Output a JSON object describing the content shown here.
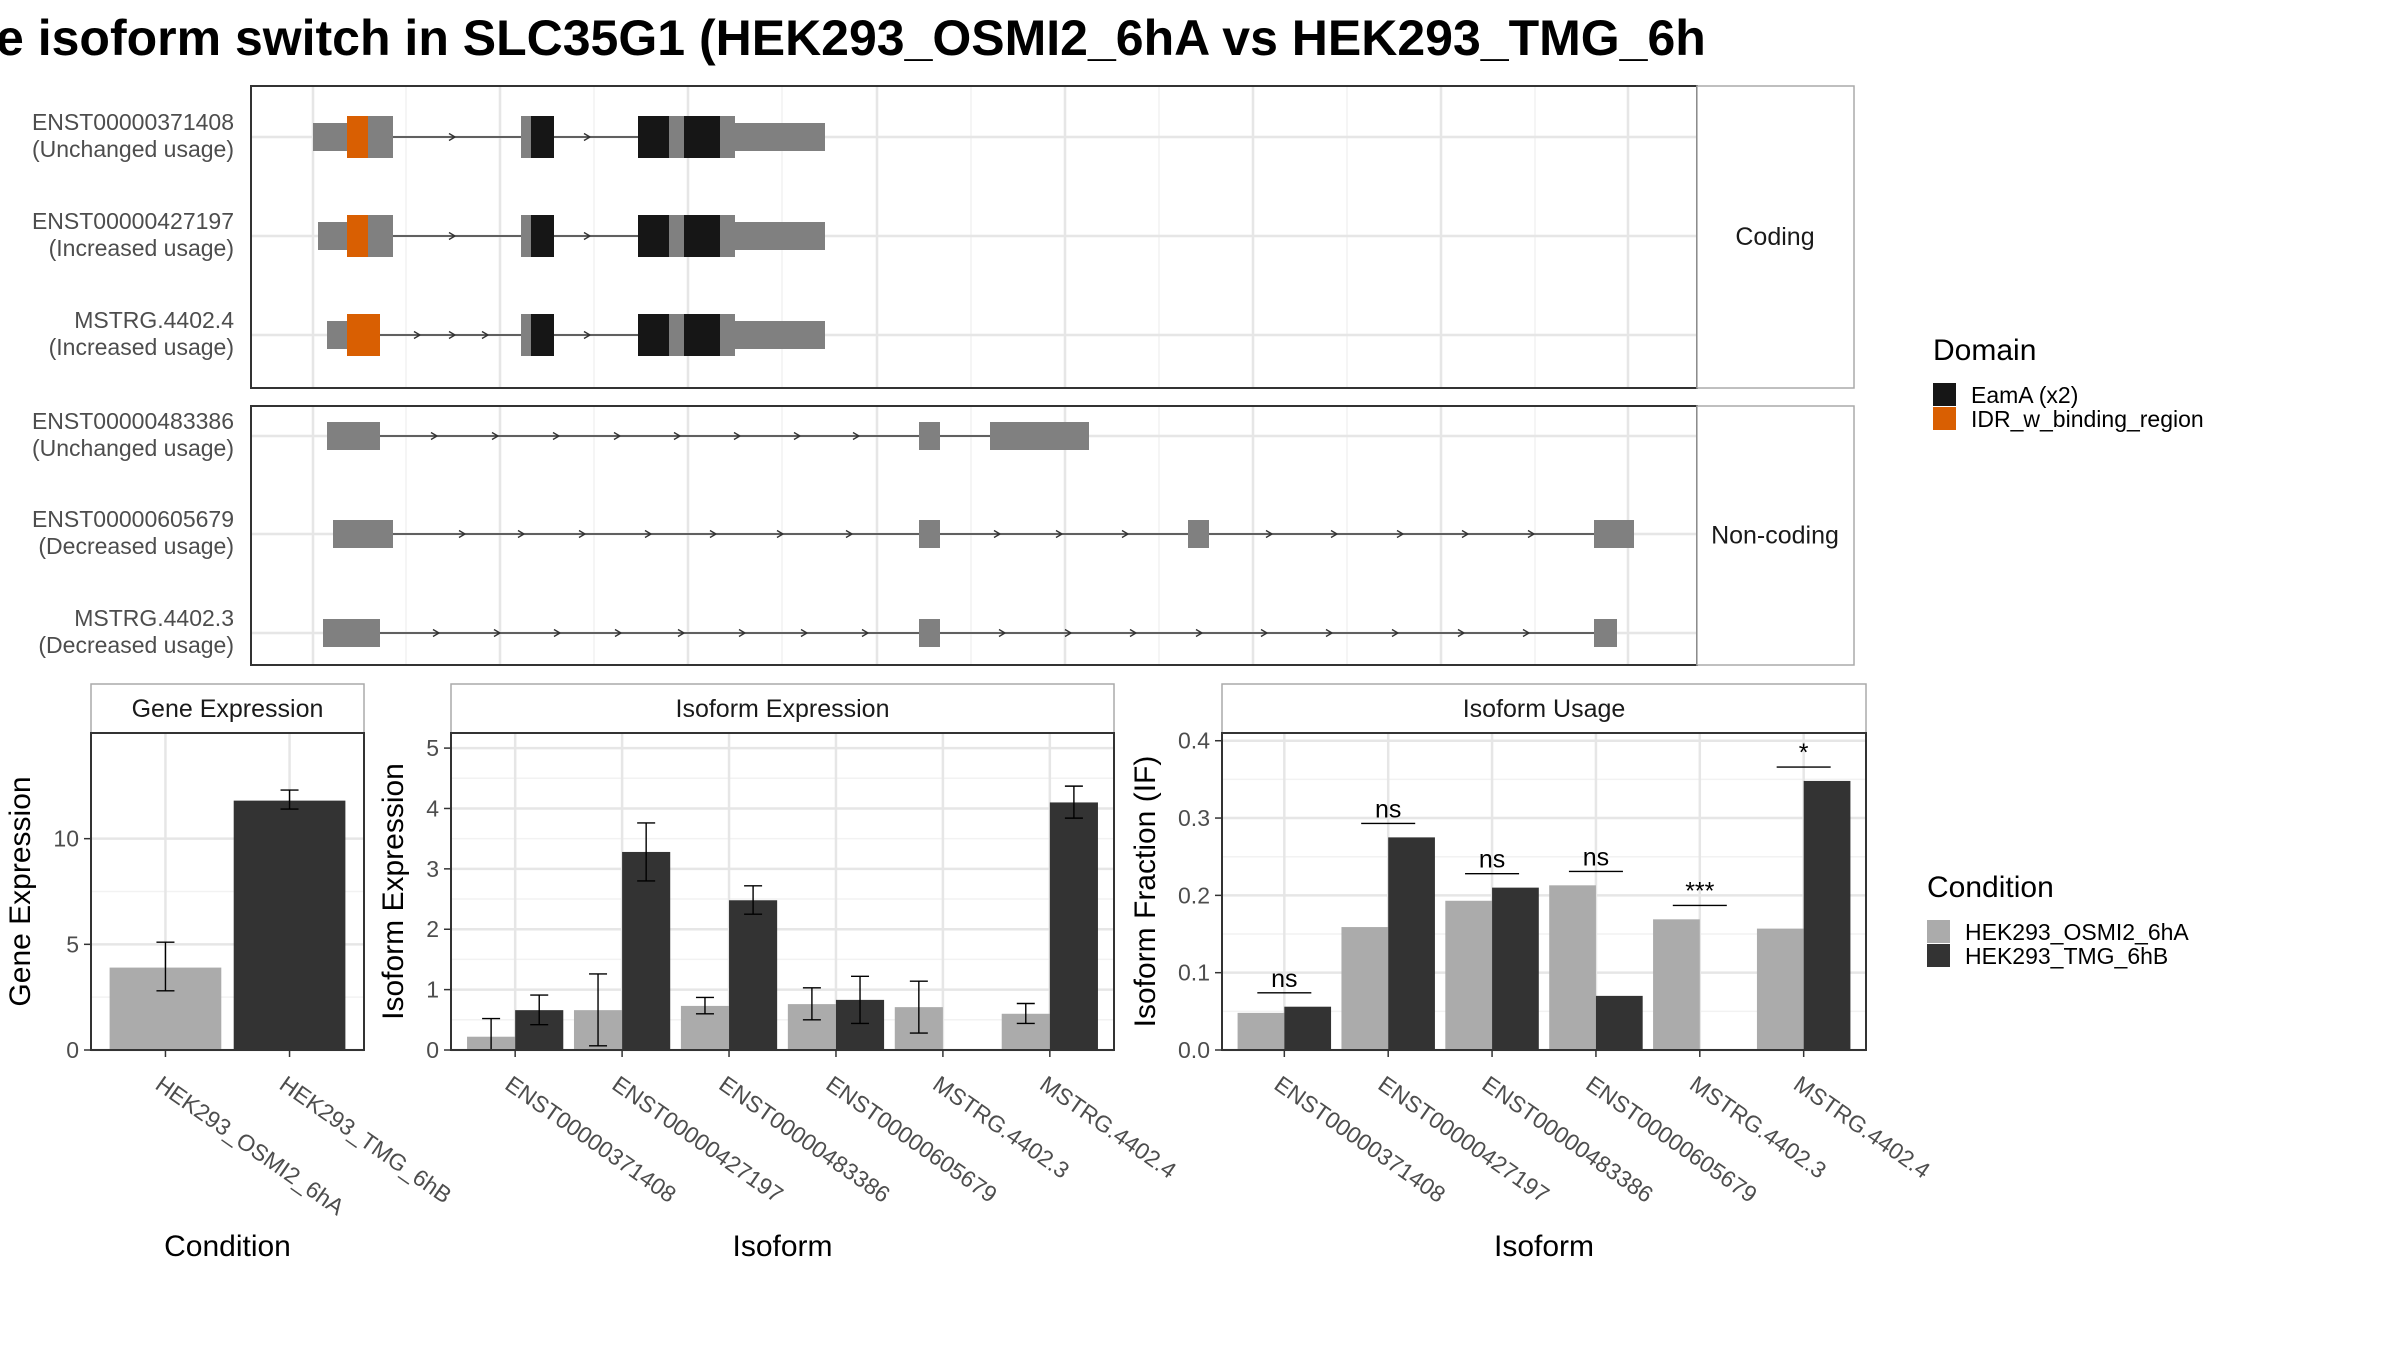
{
  "title": "e isoform switch in SLC35G1 (HEK293_OSMI2_6hA vs HEK293_TMG_6h",
  "colors": {
    "condition_a": "#ababab",
    "condition_b": "#333333",
    "exon": "#808080",
    "domain_eama": "#161616",
    "domain_idr": "#d95f02",
    "panel_border": "#333333",
    "strip_border": "#aaaaaa",
    "grid_major": "#e6e6e6",
    "grid_minor": "#f2f2f2"
  },
  "structure": {
    "coding_strip": "Coding",
    "noncoding_strip": "Non-coding",
    "tracks": [
      {
        "id": "ENST00000371408",
        "usage": "(Unchanged usage)",
        "group": "coding"
      },
      {
        "id": "ENST00000427197",
        "usage": "(Increased usage)",
        "group": "coding"
      },
      {
        "id": "MSTRG.4402.4",
        "usage": "(Increased usage)",
        "group": "coding"
      },
      {
        "id": "ENST00000483386",
        "usage": "(Unchanged usage)",
        "group": "noncoding"
      },
      {
        "id": "ENST00000605679",
        "usage": "(Decreased usage)",
        "group": "noncoding"
      },
      {
        "id": "MSTRG.4402.3",
        "usage": "(Decreased usage)",
        "group": "noncoding"
      }
    ]
  },
  "legend_domain": {
    "title": "Domain",
    "items": [
      {
        "label": "EamA (x2)",
        "color_key": "domain_eama"
      },
      {
        "label": "IDR_w_binding_region",
        "color_key": "domain_idr"
      }
    ]
  },
  "legend_condition": {
    "title": "Condition",
    "items": [
      {
        "label": "HEK293_OSMI2_6hA",
        "color_key": "condition_a"
      },
      {
        "label": "HEK293_TMG_6hB",
        "color_key": "condition_b"
      }
    ]
  },
  "chart_data": [
    {
      "type": "bar",
      "title": "Gene Expression",
      "xlabel": "Condition",
      "ylabel": "Gene Expression",
      "ylim": [
        0,
        15
      ],
      "yticks": [
        0,
        5,
        10
      ],
      "categories": [
        "HEK293_OSMI2_6hA",
        "HEK293_TMG_6hB"
      ],
      "values": [
        3.9,
        11.8
      ],
      "errors": [
        [
          2.8,
          5.1
        ],
        [
          11.4,
          12.3
        ]
      ]
    },
    {
      "type": "bar",
      "title": "Isoform Expression",
      "xlabel": "Isoform",
      "ylabel": "Isoform Expression",
      "ylim": [
        0,
        5.25
      ],
      "yticks": [
        0,
        1,
        2,
        3,
        4,
        5
      ],
      "categories": [
        "ENST00000371408",
        "ENST00000427197",
        "ENST00000483386",
        "ENST00000605679",
        "MSTRG.4402.3",
        "MSTRG.4402.4"
      ],
      "series": [
        {
          "name": "HEK293_OSMI2_6hA",
          "values": [
            0.22,
            0.66,
            0.73,
            0.76,
            0.71,
            0.6
          ],
          "errors": [
            [
              0.0,
              0.52
            ],
            [
              0.07,
              1.26
            ],
            [
              0.6,
              0.87
            ],
            [
              0.5,
              1.03
            ],
            [
              0.28,
              1.14
            ],
            [
              0.44,
              0.77
            ]
          ]
        },
        {
          "name": "HEK293_TMG_6hB",
          "values": [
            0.66,
            3.28,
            2.48,
            0.83,
            0.0,
            4.1
          ],
          "errors": [
            [
              0.42,
              0.91
            ],
            [
              2.8,
              3.76
            ],
            [
              2.25,
              2.72
            ],
            [
              0.44,
              1.22
            ],
            [
              0.0,
              0.0
            ],
            [
              3.84,
              4.37
            ]
          ]
        }
      ]
    },
    {
      "type": "bar",
      "title": "Isoform Usage",
      "xlabel": "Isoform",
      "ylabel": "Isoform Fraction (IF)",
      "ylim": [
        0,
        0.41
      ],
      "yticks": [
        0.0,
        0.1,
        0.2,
        0.3,
        0.4
      ],
      "categories": [
        "ENST00000371408",
        "ENST00000427197",
        "ENST00000483386",
        "ENST00000605679",
        "MSTRG.4402.3",
        "MSTRG.4402.4"
      ],
      "series": [
        {
          "name": "HEK293_OSMI2_6hA",
          "values": [
            0.048,
            0.159,
            0.193,
            0.213,
            0.169,
            0.157
          ]
        },
        {
          "name": "HEK293_TMG_6hB",
          "values": [
            0.056,
            0.275,
            0.21,
            0.07,
            0.0,
            0.348
          ]
        }
      ],
      "significance": [
        "ns",
        "ns",
        "ns",
        "ns",
        "***",
        "*"
      ]
    }
  ]
}
